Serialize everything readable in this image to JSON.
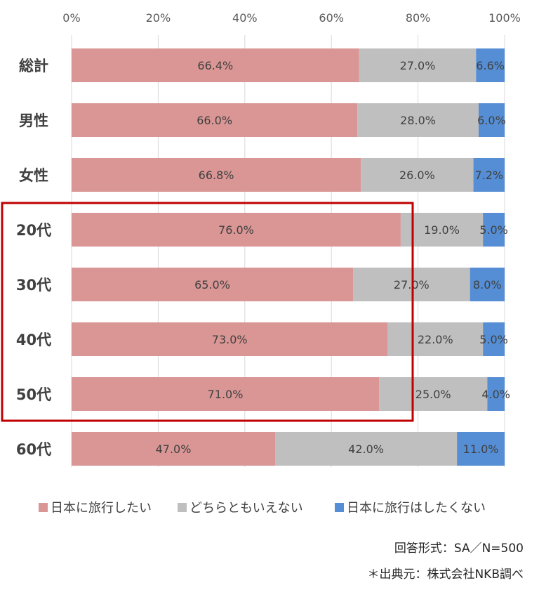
{
  "chart_data": {
    "type": "bar",
    "orientation": "horizontal",
    "stacked": true,
    "normalized": true,
    "categories": [
      "総計",
      "男性",
      "女性",
      "20代",
      "30代",
      "40代",
      "50代",
      "60代"
    ],
    "series": [
      {
        "name": "日本に旅行したい",
        "color": "#d99694",
        "values": [
          66.4,
          66.0,
          66.8,
          76.0,
          65.0,
          73.0,
          71.0,
          47.0
        ]
      },
      {
        "name": "どちらともいえない",
        "color": "#bfbfbf",
        "values": [
          27.0,
          28.0,
          26.0,
          19.0,
          27.0,
          22.0,
          25.0,
          42.0
        ]
      },
      {
        "name": "日本に旅行はしたくない",
        "color": "#558ed5",
        "values": [
          6.6,
          6.0,
          7.2,
          5.0,
          8.0,
          5.0,
          4.0,
          11.0
        ]
      }
    ],
    "data_labels": [
      [
        "66.4%",
        "66.0%",
        "66.8%",
        "76.0%",
        "65.0%",
        "73.0%",
        "71.0%",
        "47.0%"
      ],
      [
        "27.0%",
        "28.0%",
        "26.0%",
        "19.0%",
        "27.0%",
        "22.0%",
        "25.0%",
        "42.0%"
      ],
      [
        "6.6%",
        "6.0%",
        "7.2%",
        "5.0%",
        "8.0%",
        "5.0%",
        "4.0%",
        "11.0%"
      ]
    ],
    "xlim": [
      0,
      100
    ],
    "x_ticks": [
      "0%",
      "20%",
      "40%",
      "60%",
      "80%",
      "100%"
    ],
    "x_tick_values": [
      0,
      20,
      40,
      60,
      80,
      100
    ],
    "x_axis_position": "top",
    "grid": true,
    "legend_position": "bottom",
    "highlight": {
      "categories": [
        "20代",
        "30代",
        "40代",
        "50代"
      ],
      "color": "#c00000"
    }
  },
  "notes": {
    "method": "回答形式：SA／N=500",
    "source": "＊出典元：株式会社NKB調べ"
  }
}
